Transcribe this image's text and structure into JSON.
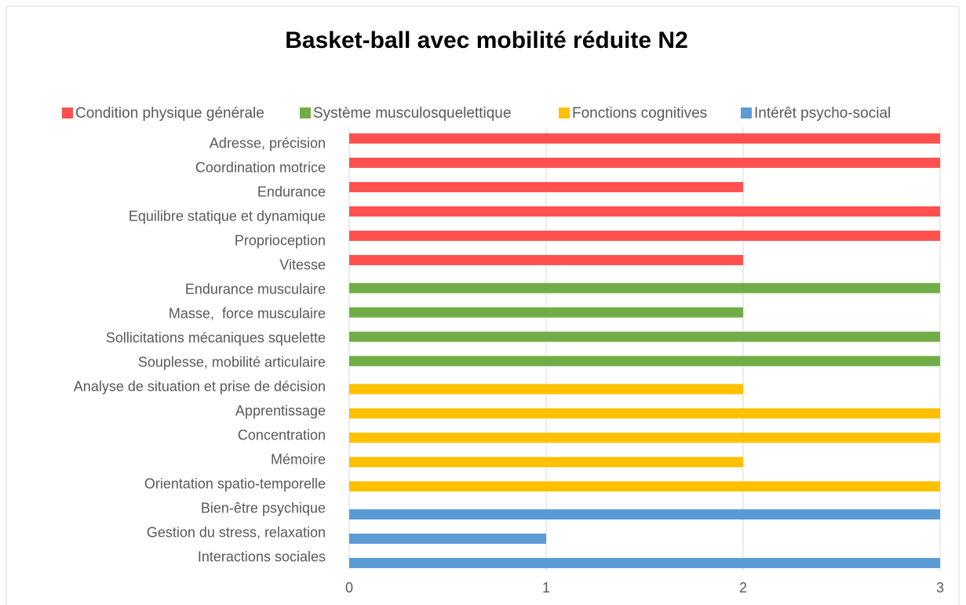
{
  "chart_data": {
    "type": "bar",
    "orientation": "horizontal",
    "title": "Basket-ball avec mobilité réduite N2",
    "categories": [
      "Adresse, précision",
      "Coordination motrice",
      "Endurance",
      "Equilibre statique et dynamique",
      "Proprioception",
      "Vitesse",
      "Endurance musculaire",
      "Masse,  force musculaire",
      "Sollicitations mécaniques squelette",
      "Souplesse, mobilité articulaire",
      "Analyse de situation et prise de décision",
      "Apprentissage",
      "Concentration",
      "Mémoire",
      "Orientation spatio-temporelle",
      "Bien-être psychique",
      "Gestion du stress, relaxation",
      "Interactions sociales"
    ],
    "series": [
      {
        "name": "Condition physique générale",
        "color": "#ff5050",
        "values": [
          3,
          3,
          2,
          3,
          3,
          2,
          null,
          null,
          null,
          null,
          null,
          null,
          null,
          null,
          null,
          null,
          null,
          null
        ]
      },
      {
        "name": "Système musculosquelettique",
        "color": "#70ad47",
        "values": [
          null,
          null,
          null,
          null,
          null,
          null,
          3,
          2,
          3,
          3,
          null,
          null,
          null,
          null,
          null,
          null,
          null,
          null
        ]
      },
      {
        "name": "Fonctions cognitives",
        "color": "#ffc000",
        "values": [
          null,
          null,
          null,
          null,
          null,
          null,
          null,
          null,
          null,
          null,
          2,
          3,
          3,
          2,
          3,
          null,
          null,
          null
        ]
      },
      {
        "name": "Intérêt psycho-social",
        "color": "#5b9bd5",
        "values": [
          null,
          null,
          null,
          null,
          null,
          null,
          null,
          null,
          null,
          null,
          null,
          null,
          null,
          null,
          null,
          3,
          1,
          3
        ]
      }
    ],
    "xlim": [
      0,
      3
    ],
    "xticks": [
      0,
      1,
      2,
      3
    ],
    "grid": true,
    "legend": "top"
  }
}
